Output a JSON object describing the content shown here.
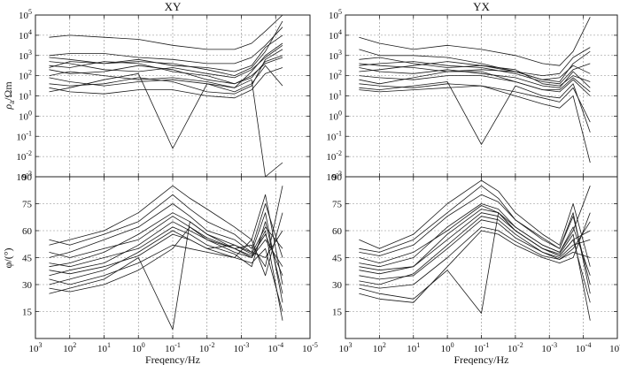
{
  "figure": {
    "panel_titles": [
      "XY",
      "YX"
    ],
    "xlabel": "Freqency/Hz",
    "rho_label_base": "ρ",
    "rho_label_sub": "a",
    "rho_label_unit": "/Ωm",
    "phase_label": "φ/(°)"
  },
  "colors": {
    "curves": "#1a1a1a",
    "axes": "#222222",
    "grid": "#8a8a8a",
    "background": "#ffffff"
  },
  "chart_data": [
    {
      "type": "line",
      "title": "XY",
      "quantity": "apparent resistivity",
      "ylabel": "ρa /Ωm",
      "xlabel": "",
      "x_axis": "log10 frequency (Hz), decreasing to the right",
      "xlim": [
        3,
        -5
      ],
      "x_ticks": [
        {
          "v": 3,
          "e": "3"
        },
        {
          "v": 2,
          "e": "2"
        },
        {
          "v": 1,
          "e": "1"
        },
        {
          "v": 0,
          "e": "0"
        },
        {
          "v": -1,
          "e": "-1"
        },
        {
          "v": -2,
          "e": "-2"
        },
        {
          "v": -3,
          "e": "-3"
        },
        {
          "v": -4,
          "e": "-4"
        },
        {
          "v": -5,
          "e": "-5"
        }
      ],
      "y_axis": "log10 resistivity",
      "ylim": [
        -3,
        5
      ],
      "y_ticks": [
        {
          "v": -3,
          "e": "-3"
        },
        {
          "v": -2,
          "e": "-2"
        },
        {
          "v": -1,
          "e": "-1"
        },
        {
          "v": 0,
          "e": "0"
        },
        {
          "v": 1,
          "e": "1"
        },
        {
          "v": 2,
          "e": "2"
        },
        {
          "v": 3,
          "e": "3"
        },
        {
          "v": 4,
          "e": "4"
        },
        {
          "v": 5,
          "e": "5"
        }
      ],
      "x": [
        2.6,
        2.0,
        1.0,
        0.0,
        -1.0,
        -2.0,
        -2.8,
        -3.3,
        -3.7,
        -4.2
      ],
      "series": [
        {
          "values": [
            3.9,
            4.0,
            3.9,
            3.8,
            3.5,
            3.3,
            3.3,
            3.6,
            4.2,
            5.0
          ]
        },
        {
          "values": [
            3.0,
            3.1,
            3.1,
            2.9,
            2.8,
            2.6,
            2.6,
            2.9,
            3.5,
            4.4
          ]
        },
        {
          "values": [
            2.9,
            2.8,
            2.6,
            2.7,
            2.6,
            2.3,
            2.0,
            2.4,
            3.2,
            4.7
          ]
        },
        {
          "values": [
            2.7,
            2.6,
            2.3,
            2.2,
            2.4,
            2.1,
            1.9,
            2.3,
            2.9,
            3.5
          ]
        },
        {
          "values": [
            2.4,
            2.7,
            2.6,
            2.8,
            2.5,
            2.4,
            2.2,
            2.5,
            3.4,
            4.0
          ]
        },
        {
          "values": [
            2.3,
            2.1,
            2.2,
            2.5,
            2.3,
            1.8,
            1.6,
            1.9,
            2.7,
            3.0
          ]
        },
        {
          "values": [
            2.0,
            2.2,
            2.0,
            1.8,
            1.9,
            1.7,
            1.4,
            2.2,
            3.0,
            3.6
          ]
        },
        {
          "values": [
            1.9,
            1.7,
            1.5,
            1.7,
            1.8,
            1.6,
            1.2,
            1.6,
            2.5,
            1.5
          ]
        },
        {
          "values": [
            1.6,
            1.5,
            1.6,
            1.9,
            1.7,
            1.2,
            1.1,
            1.5,
            2.8,
            3.3
          ]
        },
        {
          "values": [
            1.4,
            1.2,
            1.1,
            1.3,
            1.3,
            1.0,
            0.9,
            1.3,
            2.1,
            2.4
          ]
        },
        {
          "values": [
            2.5,
            2.4,
            2.7,
            2.6,
            2.2,
            2.0,
            1.6,
            2.0,
            2.6,
            2.9
          ]
        },
        {
          "values": [
            1.2,
            1.4,
            1.8,
            2.1,
            -1.6,
            1.6,
            1.4,
            1.8,
            -3.0,
            -2.3
          ]
        }
      ]
    },
    {
      "type": "line",
      "title": "YX",
      "quantity": "apparent resistivity",
      "ylabel": "",
      "xlabel": "",
      "x_axis": "log10 frequency (Hz), decreasing to the right",
      "xlim": [
        3,
        -5
      ],
      "x_ticks": [
        {
          "v": 3,
          "e": "3"
        },
        {
          "v": 2,
          "e": "2"
        },
        {
          "v": 1,
          "e": "1"
        },
        {
          "v": 0,
          "e": "0"
        },
        {
          "v": -1,
          "e": "-1"
        },
        {
          "v": -2,
          "e": "-2"
        },
        {
          "v": -3,
          "e": "-3"
        },
        {
          "v": -4,
          "e": "-4"
        },
        {
          "v": -5,
          "e": "-5"
        }
      ],
      "y_axis": "log10 resistivity",
      "ylim": [
        -3,
        5
      ],
      "y_ticks": [
        {
          "v": -3,
          "e": "-3"
        },
        {
          "v": -2,
          "e": "-2"
        },
        {
          "v": -1,
          "e": "-1"
        },
        {
          "v": 0,
          "e": "0"
        },
        {
          "v": 1,
          "e": "1"
        },
        {
          "v": 2,
          "e": "2"
        },
        {
          "v": 3,
          "e": "3"
        },
        {
          "v": 4,
          "e": "4"
        },
        {
          "v": 5,
          "e": "5"
        }
      ],
      "x": [
        2.6,
        2.0,
        1.0,
        0.0,
        -1.0,
        -2.0,
        -2.8,
        -3.3,
        -3.7,
        -4.2
      ],
      "series": [
        {
          "values": [
            3.9,
            3.6,
            3.3,
            3.5,
            3.3,
            3.0,
            2.6,
            2.5,
            3.2,
            4.9
          ]
        },
        {
          "values": [
            3.3,
            3.0,
            3.0,
            2.9,
            2.6,
            2.2,
            1.8,
            1.7,
            2.6,
            3.2
          ]
        },
        {
          "values": [
            2.8,
            2.9,
            2.6,
            2.4,
            2.5,
            2.3,
            1.6,
            1.5,
            2.0,
            1.7
          ]
        },
        {
          "values": [
            2.6,
            2.5,
            2.4,
            2.2,
            2.3,
            2.2,
            1.8,
            1.9,
            2.5,
            2.1
          ]
        },
        {
          "values": [
            2.4,
            2.2,
            2.1,
            2.3,
            2.1,
            1.9,
            1.5,
            1.4,
            2.2,
            1.4
          ]
        },
        {
          "values": [
            2.2,
            2.3,
            2.5,
            2.7,
            2.5,
            2.2,
            2.0,
            2.1,
            2.9,
            3.4
          ]
        },
        {
          "values": [
            2.0,
            1.9,
            1.8,
            2.0,
            2.0,
            1.7,
            1.3,
            1.3,
            1.9,
            1.2
          ]
        },
        {
          "values": [
            1.8,
            1.6,
            1.9,
            2.2,
            2.2,
            1.7,
            1.3,
            1.2,
            1.8,
            1.0
          ]
        },
        {
          "values": [
            1.6,
            1.5,
            1.4,
            1.6,
            1.5,
            1.2,
            0.9,
            0.7,
            1.4,
            -0.3
          ]
        },
        {
          "values": [
            1.3,
            1.2,
            1.3,
            1.4,
            1.5,
            1.0,
            0.6,
            0.4,
            1.0,
            -2.3
          ]
        },
        {
          "values": [
            2.5,
            2.6,
            2.7,
            2.5,
            2.4,
            2.1,
            1.7,
            1.6,
            2.3,
            2.6
          ]
        },
        {
          "values": [
            1.4,
            1.3,
            1.5,
            1.7,
            -1.4,
            1.5,
            1.0,
            0.9,
            1.6,
            -0.8
          ]
        }
      ]
    },
    {
      "type": "line",
      "title": "",
      "quantity": "phase",
      "ylabel": "φ/(°)",
      "xlabel": "Freqency/Hz",
      "x_axis": "log10 frequency (Hz), decreasing to the right",
      "xlim": [
        3,
        -5
      ],
      "x_ticks": [
        {
          "v": 3,
          "e": "3"
        },
        {
          "v": 2,
          "e": "2"
        },
        {
          "v": 1,
          "e": "1"
        },
        {
          "v": 0,
          "e": "0"
        },
        {
          "v": -1,
          "e": "-1"
        },
        {
          "v": -2,
          "e": "-2"
        },
        {
          "v": -3,
          "e": "-3"
        },
        {
          "v": -4,
          "e": "-4"
        },
        {
          "v": -5,
          "e": "-5"
        }
      ],
      "y_axis": "phase (degrees)",
      "ylim": [
        0,
        90
      ],
      "y_ticks": [
        {
          "v": 0,
          "e": "0"
        },
        {
          "v": 15,
          "e": "15"
        },
        {
          "v": 30,
          "e": "30"
        },
        {
          "v": 45,
          "e": "45"
        },
        {
          "v": 60,
          "e": "60"
        },
        {
          "v": 75,
          "e": "75"
        },
        {
          "v": 90,
          "e": "90"
        }
      ],
      "x": [
        2.6,
        2.0,
        1.0,
        0.0,
        -1.0,
        -1.5,
        -2.0,
        -2.8,
        -3.3,
        -3.7,
        -4.2
      ],
      "series": [
        {
          "values": [
            52,
            55,
            60,
            70,
            85,
            78,
            72,
            62,
            55,
            80,
            30
          ]
        },
        {
          "values": [
            45,
            48,
            55,
            62,
            75,
            68,
            60,
            55,
            48,
            70,
            20
          ]
        },
        {
          "values": [
            40,
            42,
            48,
            58,
            70,
            65,
            58,
            50,
            52,
            40,
            85
          ]
        },
        {
          "values": [
            35,
            38,
            42,
            52,
            65,
            60,
            55,
            48,
            45,
            60,
            10
          ]
        },
        {
          "values": [
            30,
            33,
            38,
            48,
            60,
            55,
            50,
            45,
            55,
            35,
            70
          ]
        },
        {
          "values": [
            48,
            45,
            50,
            55,
            68,
            62,
            56,
            50,
            45,
            55,
            40
          ]
        },
        {
          "values": [
            42,
            40,
            45,
            50,
            62,
            58,
            52,
            47,
            40,
            65,
            25
          ]
        },
        {
          "values": [
            38,
            36,
            40,
            46,
            58,
            55,
            50,
            52,
            48,
            45,
            60
          ]
        },
        {
          "values": [
            33,
            30,
            35,
            42,
            52,
            50,
            48,
            45,
            42,
            50,
            15
          ]
        },
        {
          "values": [
            28,
            26,
            30,
            38,
            50,
            62,
            55,
            50,
            46,
            58,
            35
          ]
        },
        {
          "values": [
            55,
            52,
            58,
            65,
            80,
            72,
            65,
            58,
            50,
            75,
            45
          ]
        },
        {
          "values": [
            25,
            28,
            33,
            45,
            5,
            65,
            58,
            52,
            47,
            62,
            50
          ]
        }
      ]
    },
    {
      "type": "line",
      "title": "",
      "quantity": "phase",
      "ylabel": "",
      "xlabel": "Freqency/Hz",
      "x_axis": "log10 frequency (Hz), decreasing to the right",
      "xlim": [
        3,
        -5
      ],
      "x_ticks": [
        {
          "v": 3,
          "e": "3"
        },
        {
          "v": 2,
          "e": "2"
        },
        {
          "v": 1,
          "e": "1"
        },
        {
          "v": 0,
          "e": "0"
        },
        {
          "v": -1,
          "e": "-1"
        },
        {
          "v": -2,
          "e": "-2"
        },
        {
          "v": -3,
          "e": "-3"
        },
        {
          "v": -4,
          "e": "-4"
        },
        {
          "v": -5,
          "e": "-5"
        }
      ],
      "y_axis": "phase (degrees)",
      "ylim": [
        0,
        90
      ],
      "y_ticks": [
        {
          "v": 0,
          "e": "0"
        },
        {
          "v": 15,
          "e": "15"
        },
        {
          "v": 30,
          "e": "30"
        },
        {
          "v": 45,
          "e": "45"
        },
        {
          "v": 60,
          "e": "60"
        },
        {
          "v": 75,
          "e": "75"
        },
        {
          "v": 90,
          "e": "90"
        }
      ],
      "x": [
        2.6,
        2.0,
        1.0,
        0.0,
        -1.0,
        -1.5,
        -2.0,
        -2.8,
        -3.3,
        -3.7,
        -4.2
      ],
      "series": [
        {
          "values": [
            55,
            50,
            58,
            75,
            88,
            82,
            70,
            58,
            52,
            75,
            40
          ]
        },
        {
          "values": [
            48,
            46,
            52,
            68,
            80,
            76,
            66,
            55,
            50,
            68,
            30
          ]
        },
        {
          "values": [
            42,
            40,
            45,
            62,
            75,
            72,
            62,
            52,
            48,
            60,
            85
          ]
        },
        {
          "values": [
            38,
            36,
            40,
            58,
            72,
            70,
            60,
            50,
            46,
            55,
            20
          ]
        },
        {
          "values": [
            32,
            30,
            36,
            52,
            68,
            66,
            58,
            48,
            44,
            50,
            65
          ]
        },
        {
          "values": [
            45,
            42,
            48,
            60,
            74,
            70,
            62,
            52,
            48,
            62,
            35
          ]
        },
        {
          "values": [
            40,
            38,
            40,
            55,
            70,
            68,
            60,
            50,
            47,
            58,
            10
          ]
        },
        {
          "values": [
            35,
            33,
            35,
            50,
            66,
            64,
            56,
            48,
            45,
            52,
            55
          ]
        },
        {
          "values": [
            30,
            28,
            30,
            45,
            62,
            60,
            54,
            46,
            44,
            48,
            45
          ]
        },
        {
          "values": [
            25,
            22,
            20,
            40,
            60,
            58,
            52,
            45,
            42,
            45,
            70
          ]
        },
        {
          "values": [
            50,
            48,
            55,
            70,
            85,
            78,
            66,
            56,
            50,
            70,
            25
          ]
        },
        {
          "values": [
            28,
            25,
            22,
            38,
            14,
            70,
            60,
            50,
            46,
            55,
            60
          ]
        }
      ]
    }
  ]
}
